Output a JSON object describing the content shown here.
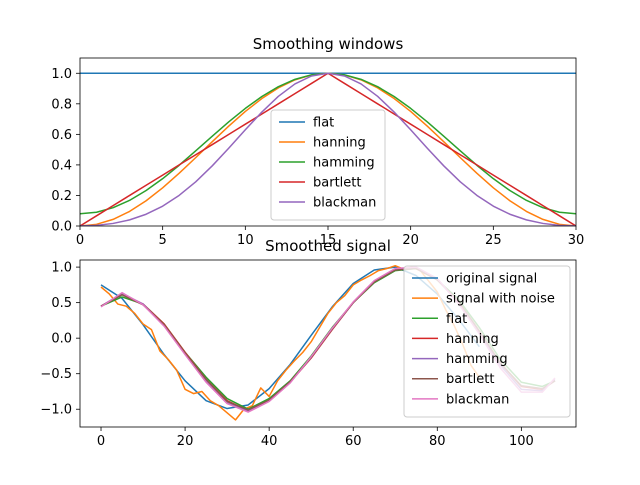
{
  "chart_data": [
    {
      "type": "line",
      "title": "Smoothing windows",
      "xlabel": "",
      "ylabel": "",
      "xlim": [
        0,
        30
      ],
      "ylim": [
        0,
        1.1
      ],
      "xticks": [
        0,
        5,
        10,
        15,
        20,
        25,
        30
      ],
      "yticks": [
        0.0,
        0.2,
        0.4,
        0.6,
        0.8,
        1.0
      ],
      "xtick_labels": [
        "0",
        "5",
        "10",
        "15",
        "20",
        "25",
        "30"
      ],
      "ytick_labels": [
        "0.0",
        "0.2",
        "0.4",
        "0.6",
        "0.8",
        "1.0"
      ],
      "grid": false,
      "legend_position": "lower-center",
      "series": [
        {
          "name": "flat",
          "color": "#1f77b4",
          "function": "flat",
          "x_start": 0,
          "x_end": 30,
          "n": 31
        },
        {
          "name": "hanning",
          "color": "#ff7f0e",
          "function": "hanning",
          "x_start": 0,
          "x_end": 30,
          "n": 31
        },
        {
          "name": "hamming",
          "color": "#2ca02c",
          "function": "hamming",
          "x_start": 0,
          "x_end": 30,
          "n": 31
        },
        {
          "name": "bartlett",
          "color": "#d62728",
          "function": "bartlett",
          "x_start": 0,
          "x_end": 30,
          "n": 31
        },
        {
          "name": "blackman",
          "color": "#9467bd",
          "function": "blackman",
          "x_start": 0,
          "x_end": 30,
          "n": 31
        }
      ]
    },
    {
      "type": "line",
      "title": "Smoothed signal",
      "xlabel": "",
      "ylabel": "",
      "xlim": [
        -5,
        113
      ],
      "ylim": [
        -1.25,
        1.1
      ],
      "xticks": [
        0,
        20,
        40,
        60,
        80,
        100
      ],
      "yticks": [
        -1.0,
        -0.5,
        0.0,
        0.5,
        1.0
      ],
      "xtick_labels": [
        "0",
        "20",
        "40",
        "60",
        "80",
        "100"
      ],
      "ytick_labels": [
        "−1.0",
        "−0.5",
        "0.0",
        "0.5",
        "1.0"
      ],
      "grid": false,
      "legend_position": "upper-right",
      "series": [
        {
          "name": "original signal",
          "color": "#1f77b4",
          "x": [
            0,
            5,
            10,
            15,
            20,
            25,
            30,
            35,
            40,
            45,
            50,
            55,
            60,
            65,
            70,
            75,
            80,
            85,
            90
          ],
          "y": [
            0.75,
            0.56,
            0.19,
            -0.23,
            -0.6,
            -0.88,
            -0.99,
            -0.94,
            -0.71,
            -0.37,
            0.04,
            0.44,
            0.77,
            0.96,
            1.0,
            0.88,
            0.62,
            0.27,
            -0.12
          ]
        },
        {
          "name": "signal with noise",
          "color": "#ff7f0e",
          "x": [
            0,
            2,
            4,
            6,
            8,
            10,
            12,
            14,
            16,
            18,
            20,
            22,
            24,
            26,
            28,
            30,
            32,
            34,
            36,
            38,
            40,
            42,
            44,
            46,
            48,
            50,
            52,
            54,
            56,
            58,
            60,
            62,
            64,
            66,
            68,
            70,
            72,
            74,
            76,
            78,
            80,
            82,
            84,
            86,
            88,
            90
          ],
          "y": [
            0.72,
            0.62,
            0.48,
            0.45,
            0.35,
            0.2,
            0.12,
            -0.18,
            -0.3,
            -0.45,
            -0.72,
            -0.78,
            -0.75,
            -0.88,
            -0.95,
            -1.05,
            -1.15,
            -1.0,
            -0.95,
            -0.7,
            -0.82,
            -0.6,
            -0.45,
            -0.32,
            -0.2,
            -0.05,
            0.15,
            0.35,
            0.5,
            0.6,
            0.75,
            0.82,
            0.88,
            0.95,
            0.98,
            1.02,
            0.97,
            1.0,
            0.95,
            0.8,
            0.65,
            0.4,
            0.18,
            -0.08,
            -0.38,
            -0.55
          ]
        },
        {
          "name": "flat",
          "color": "#2ca02c",
          "x": [
            0,
            5,
            10,
            15,
            20,
            25,
            30,
            35,
            40,
            45,
            50,
            55,
            60,
            65,
            70,
            75,
            80,
            85,
            90,
            95,
            100,
            105,
            108
          ],
          "y": [
            0.45,
            0.58,
            0.48,
            0.2,
            -0.2,
            -0.55,
            -0.85,
            -1.0,
            -0.85,
            -0.6,
            -0.25,
            0.15,
            0.5,
            0.78,
            0.95,
            0.98,
            0.82,
            0.55,
            0.15,
            -0.3,
            -0.62,
            -0.68,
            -0.6
          ]
        },
        {
          "name": "hanning",
          "color": "#d62728",
          "x": [
            0,
            5,
            10,
            15,
            20,
            25,
            30,
            35,
            40,
            45,
            50,
            55,
            60,
            65,
            70,
            75,
            80,
            85,
            90,
            95,
            100,
            105,
            108
          ],
          "y": [
            0.45,
            0.62,
            0.48,
            0.2,
            -0.2,
            -0.58,
            -0.88,
            -1.02,
            -0.88,
            -0.62,
            -0.28,
            0.12,
            0.5,
            0.8,
            0.97,
            0.98,
            0.82,
            0.52,
            0.1,
            -0.35,
            -0.68,
            -0.72,
            -0.6
          ]
        },
        {
          "name": "hamming",
          "color": "#9467bd",
          "x": [
            0,
            5,
            10,
            15,
            20,
            25,
            30,
            35,
            40,
            45,
            50,
            55,
            60,
            65,
            70,
            75,
            80,
            85,
            90,
            95,
            100,
            105,
            108
          ],
          "y": [
            0.45,
            0.63,
            0.48,
            0.18,
            -0.22,
            -0.6,
            -0.9,
            -1.03,
            -0.88,
            -0.62,
            -0.27,
            0.13,
            0.5,
            0.8,
            0.97,
            0.99,
            0.83,
            0.5,
            0.08,
            -0.38,
            -0.72,
            -0.74,
            -0.58
          ]
        },
        {
          "name": "bartlett",
          "color": "#8c564b",
          "x": [
            0,
            5,
            10,
            15,
            20,
            25,
            30,
            35,
            40,
            45,
            50,
            55,
            60,
            65,
            70,
            75,
            80,
            85,
            90,
            95,
            100,
            105,
            108
          ],
          "y": [
            0.45,
            0.61,
            0.47,
            0.19,
            -0.21,
            -0.58,
            -0.89,
            -1.01,
            -0.87,
            -0.61,
            -0.27,
            0.13,
            0.5,
            0.79,
            0.96,
            0.98,
            0.82,
            0.52,
            0.1,
            -0.35,
            -0.67,
            -0.71,
            -0.6
          ]
        },
        {
          "name": "blackman",
          "color": "#e377c2",
          "x": [
            0,
            5,
            10,
            15,
            20,
            25,
            30,
            35,
            40,
            45,
            50,
            55,
            60,
            65,
            70,
            75,
            80,
            85,
            90,
            95,
            100,
            105,
            108
          ],
          "y": [
            0.44,
            0.64,
            0.47,
            0.17,
            -0.23,
            -0.62,
            -0.92,
            -1.04,
            -0.89,
            -0.63,
            -0.26,
            0.14,
            0.51,
            0.81,
            0.98,
            1.0,
            0.84,
            0.49,
            0.06,
            -0.42,
            -0.76,
            -0.76,
            -0.56
          ]
        }
      ]
    }
  ]
}
